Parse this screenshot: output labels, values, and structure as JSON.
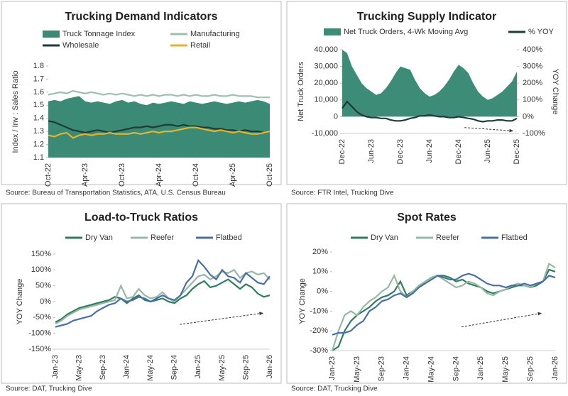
{
  "chart_data": [
    {
      "type": "combo",
      "title": "Trucking Demand Indicators",
      "y_label": "Index / Inv : Sales Ratio",
      "source": "Source: Bureau of Transportation Statistics, ATA, U.S. Census Bureau",
      "categories": [
        "Oct-22",
        null,
        null,
        null,
        null,
        null,
        "Apr-23",
        null,
        null,
        null,
        null,
        null,
        "Oct-23",
        null,
        null,
        null,
        null,
        null,
        "Apr-24",
        null,
        null,
        null,
        null,
        null,
        "Oct-24",
        null,
        null,
        null,
        null,
        null,
        "Apr-25",
        null,
        null,
        null,
        null,
        null,
        "Oct-25"
      ],
      "ylim": [
        1.1,
        1.8
      ],
      "yticks": [
        1.1,
        1.2,
        1.3,
        1.4,
        1.5,
        1.6,
        1.7,
        1.8
      ],
      "series": [
        {
          "name": "Truck Tonnage Index",
          "style": "area",
          "color": "#3a8a76",
          "values": [
            1.53,
            1.54,
            1.53,
            1.55,
            1.56,
            1.57,
            1.53,
            1.52,
            1.53,
            1.52,
            1.51,
            1.53,
            1.54,
            1.52,
            1.53,
            1.51,
            1.5,
            1.52,
            1.51,
            1.52,
            1.53,
            1.52,
            1.51,
            1.53,
            1.52,
            1.51,
            1.52,
            1.53,
            1.52,
            1.51,
            1.52,
            1.53,
            1.52,
            1.53,
            1.54,
            1.53,
            1.51
          ]
        },
        {
          "name": "Manufacturing",
          "style": "line",
          "color": "#9fbfae",
          "values": [
            1.58,
            1.59,
            1.6,
            1.59,
            1.61,
            1.6,
            1.59,
            1.6,
            1.59,
            1.58,
            1.59,
            1.58,
            1.59,
            1.58,
            1.57,
            1.58,
            1.57,
            1.58,
            1.57,
            1.58,
            1.58,
            1.57,
            1.58,
            1.57,
            1.58,
            1.57,
            1.57,
            1.58,
            1.57,
            1.57,
            1.58,
            1.57,
            1.57,
            1.57,
            1.56,
            1.56,
            1.56
          ]
        },
        {
          "name": "Wholesale",
          "style": "line",
          "color": "#1f3b35",
          "values": [
            1.38,
            1.37,
            1.35,
            1.33,
            1.31,
            1.3,
            1.29,
            1.3,
            1.31,
            1.3,
            1.29,
            1.3,
            1.31,
            1.32,
            1.33,
            1.33,
            1.34,
            1.33,
            1.34,
            1.35,
            1.35,
            1.34,
            1.35,
            1.34,
            1.34,
            1.33,
            1.33,
            1.32,
            1.32,
            1.31,
            1.31,
            1.3,
            1.31,
            1.3,
            1.3,
            1.29,
            1.3
          ]
        },
        {
          "name": "Retail",
          "style": "line",
          "color": "#e3b52e",
          "values": [
            1.27,
            1.26,
            1.28,
            1.29,
            1.25,
            1.27,
            1.28,
            1.27,
            1.28,
            1.28,
            1.29,
            1.28,
            1.28,
            1.28,
            1.29,
            1.28,
            1.29,
            1.3,
            1.29,
            1.3,
            1.3,
            1.31,
            1.32,
            1.33,
            1.33,
            1.32,
            1.31,
            1.3,
            1.31,
            1.3,
            1.29,
            1.3,
            1.29,
            1.28,
            1.28,
            1.29,
            1.3
          ]
        }
      ]
    },
    {
      "type": "combo",
      "title": "Trucking Supply Indicator",
      "y_label": "Net Truck Orders",
      "y2_label": "YOY Change",
      "source": "Source: FTR Intel, Trucking Dive",
      "categories": [
        "Dec-22",
        null,
        null,
        null,
        null,
        null,
        "Jun-23",
        null,
        null,
        null,
        null,
        null,
        "Dec-23",
        null,
        null,
        null,
        null,
        null,
        "Jun-24",
        null,
        null,
        null,
        null,
        null,
        "Dec-24",
        null,
        null,
        null,
        null,
        null,
        "Jun-25",
        null,
        null,
        null,
        null,
        null,
        "Dec-25"
      ],
      "ylim": [
        -10000,
        40000
      ],
      "yticks": [
        {
          "value": -10000,
          "label": "-10,000"
        },
        0,
        {
          "value": 10000,
          "label": "10,000"
        },
        {
          "value": 20000,
          "label": "20,000"
        },
        {
          "value": 30000,
          "label": "30,000"
        },
        {
          "value": 40000,
          "label": "40,000"
        }
      ],
      "y2lim": [
        -100,
        400
      ],
      "y2ticks": [
        {
          "value": -100,
          "label": "-100%"
        },
        {
          "value": 0,
          "label": "0%"
        },
        {
          "value": 100,
          "label": "100%"
        },
        {
          "value": 200,
          "label": "200%"
        },
        {
          "value": 300,
          "label": "300%"
        },
        {
          "value": 400,
          "label": "400%"
        }
      ],
      "series": [
        {
          "name": "Net Truck Orders, 4-Wk Moving Avg",
          "style": "area",
          "color": "#3d8c78",
          "values": [
            40000,
            38000,
            30000,
            25000,
            20000,
            17000,
            15000,
            13000,
            14000,
            17000,
            21000,
            26000,
            30000,
            29000,
            28000,
            22000,
            17000,
            14000,
            12000,
            13000,
            15000,
            18000,
            22000,
            27000,
            31000,
            29000,
            26000,
            20000,
            15000,
            12000,
            10000,
            11000,
            13000,
            15000,
            18000,
            21000,
            27000
          ]
        },
        {
          "name": "% YOY",
          "style": "line",
          "axis": "y2",
          "color": "#1f3b35",
          "values": [
            50,
            90,
            60,
            30,
            10,
            0,
            -5,
            -5,
            -10,
            -10,
            -20,
            -25,
            -25,
            -20,
            -10,
            -5,
            5,
            5,
            10,
            5,
            0,
            0,
            -5,
            -5,
            0,
            -5,
            -10,
            -15,
            -25,
            -30,
            -25,
            -25,
            -20,
            -20,
            -25,
            -25,
            -10
          ]
        }
      ]
    },
    {
      "type": "line",
      "title": "Load-to-Truck Ratios",
      "y_label": "YOY Change",
      "source": "Source: DAT, Trucking Dive",
      "categories": [
        "Jan-23",
        null,
        null,
        null,
        "May-23",
        null,
        null,
        null,
        "Sep-23",
        null,
        null,
        null,
        "Jan-24",
        null,
        null,
        null,
        "May-24",
        null,
        null,
        null,
        "Sep-24",
        null,
        null,
        null,
        "Jan-25",
        null,
        null,
        null,
        "May-25",
        null,
        null,
        null,
        "Sep-25",
        null,
        null,
        null,
        "Jan-26"
      ],
      "ylim": [
        -150,
        150
      ],
      "yticks": [
        {
          "value": -150,
          "label": "-150%"
        },
        {
          "value": -100,
          "label": "-100%"
        },
        {
          "value": -50,
          "label": "-50%"
        },
        {
          "value": 0,
          "label": "0%"
        },
        {
          "value": 50,
          "label": "50%"
        },
        {
          "value": 100,
          "label": "100%"
        },
        {
          "value": 150,
          "label": "150%"
        }
      ],
      "series": [
        {
          "name": "Dry Van",
          "style": "line",
          "color": "#2e7d5e",
          "values": [
            -65,
            -55,
            -40,
            -30,
            -20,
            -15,
            -10,
            -5,
            0,
            5,
            15,
            10,
            -5,
            10,
            20,
            5,
            0,
            5,
            10,
            0,
            -5,
            10,
            20,
            40,
            55,
            65,
            45,
            50,
            60,
            70,
            55,
            40,
            55,
            45,
            25,
            15,
            20
          ]
        },
        {
          "name": "Reefer",
          "style": "line",
          "color": "#97b8a5",
          "values": [
            -70,
            -60,
            -45,
            -35,
            -25,
            -20,
            -15,
            -10,
            -5,
            0,
            5,
            50,
            10,
            15,
            40,
            20,
            10,
            15,
            30,
            10,
            0,
            20,
            40,
            60,
            80,
            85,
            70,
            80,
            95,
            90,
            100,
            75,
            90,
            95,
            85,
            90,
            70
          ]
        },
        {
          "name": "Flatbed",
          "style": "line",
          "color": "#4a6ea8",
          "values": [
            -80,
            -75,
            -70,
            -60,
            -55,
            -50,
            -45,
            -30,
            -20,
            -10,
            -5,
            10,
            0,
            5,
            15,
            10,
            0,
            10,
            20,
            10,
            5,
            20,
            60,
            80,
            130,
            110,
            85,
            70,
            100,
            80,
            75,
            60,
            90,
            75,
            60,
            55,
            80
          ]
        }
      ]
    },
    {
      "type": "line",
      "title": "Spot Rates",
      "y_label": "YOY Change",
      "source": "Source: DAT, Trucking Dive",
      "categories": [
        "Jan-23",
        null,
        null,
        null,
        "May-23",
        null,
        null,
        null,
        "Sep-23",
        null,
        null,
        null,
        "Jan-24",
        null,
        null,
        null,
        "May-24",
        null,
        null,
        null,
        "Sep-24",
        null,
        null,
        null,
        "Jan-25",
        null,
        null,
        null,
        "May-25",
        null,
        null,
        null,
        "Sep-25",
        null,
        null,
        null,
        "Jan-26"
      ],
      "ylim": [
        -30,
        20
      ],
      "yticks": [
        {
          "value": -30,
          "label": "-30%"
        },
        {
          "value": -20,
          "label": "-20%"
        },
        {
          "value": -10,
          "label": "-10%"
        },
        {
          "value": 0,
          "label": "0%"
        },
        {
          "value": 10,
          "label": "10%"
        },
        {
          "value": 20,
          "label": "20%"
        }
      ],
      "series": [
        {
          "name": "Dry Van",
          "style": "line",
          "color": "#2e7d5e",
          "values": [
            -30,
            -28,
            -20,
            -15,
            -12,
            -10,
            -8,
            -5,
            -3,
            -2,
            0,
            5,
            -2,
            0,
            2,
            5,
            7,
            8,
            8,
            7,
            5,
            6,
            4,
            3,
            2,
            0,
            -1,
            0,
            1,
            2,
            3,
            3,
            2,
            3,
            5,
            11,
            10
          ]
        },
        {
          "name": "Reefer",
          "style": "line",
          "color": "#97b8a5",
          "values": [
            -30,
            -20,
            -12,
            -10,
            -12,
            -8,
            -5,
            -3,
            0,
            2,
            8,
            0,
            -3,
            0,
            3,
            5,
            7,
            8,
            6,
            4,
            2,
            3,
            5,
            4,
            2,
            -1,
            -2,
            0,
            1,
            3,
            4,
            3,
            2,
            4,
            5,
            14,
            12
          ]
        },
        {
          "name": "Flatbed",
          "style": "line",
          "color": "#4a6ea8",
          "values": [
            -22,
            -21,
            -21,
            -20,
            -17,
            -15,
            -10,
            -8,
            -5,
            -4,
            -2,
            -1,
            -3,
            -1,
            2,
            4,
            6,
            8,
            7,
            6,
            6,
            8,
            9,
            8,
            6,
            4,
            3,
            3,
            2,
            3,
            3,
            4,
            3,
            4,
            5,
            8,
            7
          ]
        }
      ]
    }
  ]
}
